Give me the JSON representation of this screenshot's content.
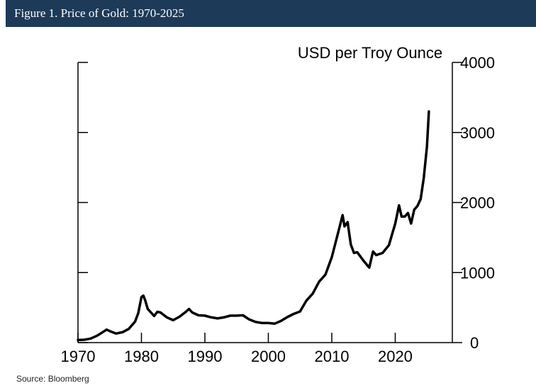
{
  "header": {
    "title": "Figure 1. Price of Gold: 1970-2025",
    "bg_color": "#1d3a58"
  },
  "footer": {
    "source": "Source: Bloomberg"
  },
  "chart_data": {
    "type": "line",
    "title": "",
    "xlabel": "",
    "ylabel": "USD per Troy Ounce",
    "xlim": [
      1970,
      2029
    ],
    "ylim": [
      0,
      4000
    ],
    "x_ticks": [
      1970,
      1980,
      1990,
      2000,
      2010,
      2020
    ],
    "y_ticks": [
      0,
      1000,
      2000,
      3000,
      4000
    ],
    "y_axis_side": "right",
    "grid": false,
    "legend": "none",
    "line_color": "#000000",
    "series": [
      {
        "x": [
          1970,
          1971,
          1972,
          1973,
          1974,
          1974.5,
          1975,
          1976,
          1977,
          1978,
          1979,
          1979.5,
          1980,
          1980.3,
          1980.6,
          1981,
          1982,
          1982.5,
          1983,
          1984,
          1985,
          1986,
          1987,
          1987.5,
          1988,
          1989,
          1990,
          1991,
          1992,
          1993,
          1994,
          1995,
          1996,
          1997,
          1998,
          1999,
          2000,
          2001,
          2002,
          2003,
          2004,
          2005,
          2006,
          2007,
          2008,
          2009,
          2010,
          2011,
          2011.7,
          2012,
          2012.5,
          2013,
          2013.5,
          2014,
          2015,
          2015.9,
          2016.5,
          2017,
          2018,
          2019,
          2020,
          2020.6,
          2021,
          2021.5,
          2022,
          2022.5,
          2023,
          2023.5,
          2024,
          2024.5,
          2025,
          2025.3
        ],
        "y": [
          36,
          41,
          58,
          98,
          155,
          185,
          165,
          130,
          148,
          195,
          300,
          420,
          650,
          670,
          600,
          480,
          380,
          440,
          430,
          360,
          320,
          370,
          440,
          480,
          430,
          390,
          385,
          360,
          345,
          360,
          385,
          385,
          390,
          330,
          295,
          280,
          280,
          270,
          310,
          365,
          410,
          445,
          600,
          700,
          870,
          970,
          1220,
          1570,
          1820,
          1660,
          1720,
          1400,
          1280,
          1290,
          1170,
          1070,
          1300,
          1250,
          1280,
          1390,
          1700,
          1960,
          1800,
          1800,
          1850,
          1700,
          1900,
          1950,
          2050,
          2350,
          2800,
          3300
        ]
      }
    ]
  }
}
